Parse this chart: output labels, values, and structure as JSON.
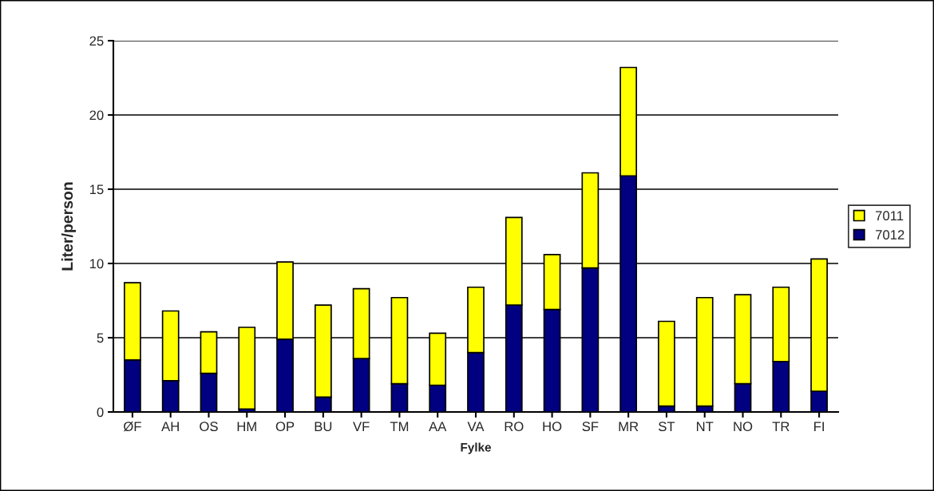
{
  "chart_data": {
    "type": "bar",
    "stacked": true,
    "xlabel": "Fylke",
    "ylabel": "Liter/person",
    "categories": [
      "ØF",
      "AH",
      "OS",
      "HM",
      "OP",
      "BU",
      "VF",
      "TM",
      "AA",
      "VA",
      "RO",
      "HO",
      "SF",
      "MR",
      "ST",
      "NT",
      "NO",
      "TR",
      "FI"
    ],
    "series": [
      {
        "name": "7012",
        "color": "#000080",
        "values": [
          3.5,
          2.1,
          2.6,
          0.2,
          4.9,
          1.0,
          3.6,
          1.9,
          1.8,
          4.0,
          7.2,
          6.9,
          9.7,
          15.9,
          0.4,
          0.4,
          1.9,
          3.4,
          1.4
        ]
      },
      {
        "name": "7011",
        "color": "#ffff00",
        "values": [
          5.2,
          4.7,
          2.8,
          5.5,
          5.2,
          6.2,
          4.7,
          5.8,
          3.5,
          4.4,
          5.9,
          3.7,
          6.4,
          7.3,
          5.7,
          7.3,
          6.0,
          5.0,
          8.9
        ]
      }
    ],
    "ylim": [
      0,
      25
    ],
    "yticks": [
      0,
      5,
      10,
      15,
      20,
      25
    ],
    "grid": "y",
    "legend": "right"
  }
}
